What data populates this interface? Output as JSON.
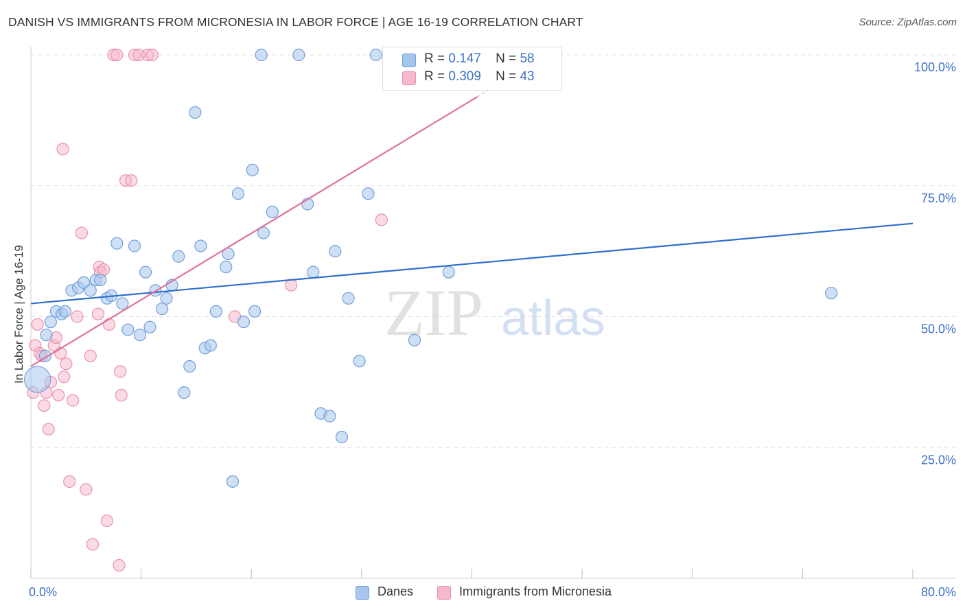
{
  "title": "DANISH VS IMMIGRANTS FROM MICRONESIA IN LABOR FORCE | AGE 16-19 CORRELATION CHART",
  "source": "Source: ZipAtlas.com",
  "watermark": {
    "zip": "ZIP",
    "atlas": "atlas"
  },
  "legend": {
    "danes": {
      "r_label": "R =",
      "r_value": "0.147",
      "n_label": "N =",
      "n_value": "58"
    },
    "micronesia": {
      "r_label": "R =",
      "r_value": "0.309",
      "n_label": "N =",
      "n_value": "43"
    }
  },
  "colors": {
    "danes_fill": "#a8c6ec",
    "danes_stroke": "#6f9fdc",
    "danes_line": "#2f6fce",
    "micro_fill": "#f6b8cb",
    "micro_stroke": "#ea8fae",
    "micro_line": "#e07098",
    "axis_text": "#3a6fc8",
    "grid": "#e2e2e2"
  },
  "chart_data": {
    "type": "scatter",
    "title": "DANISH VS IMMIGRANTS FROM MICRONESIA IN LABOR FORCE | AGE 16-19 CORRELATION CHART",
    "xlabel": "",
    "ylabel": "In Labor Force | Age 16-19",
    "xlim": [
      0,
      80
    ],
    "ylim": [
      0,
      100
    ],
    "x_tick_labels": [
      {
        "value": 0,
        "label": "0.0%"
      },
      {
        "value": 80,
        "label": "80.0%"
      }
    ],
    "y_tick_labels": [
      {
        "value": 25,
        "label": "25.0%"
      },
      {
        "value": 50,
        "label": "50.0%"
      },
      {
        "value": 75,
        "label": "75.0%"
      },
      {
        "value": 100,
        "label": "100.0%"
      }
    ],
    "legend_position": "top-center",
    "series": [
      {
        "name": "Danes",
        "r": 0.147,
        "n": 58,
        "trend": {
          "x": [
            0,
            80
          ],
          "y": [
            52.5,
            67.8
          ]
        },
        "points": [
          {
            "x": 0.6,
            "y": 38,
            "big": true
          },
          {
            "x": 1.3,
            "y": 42.5
          },
          {
            "x": 1.4,
            "y": 46.5
          },
          {
            "x": 1.8,
            "y": 49
          },
          {
            "x": 2.3,
            "y": 51
          },
          {
            "x": 2.8,
            "y": 50.5
          },
          {
            "x": 3.1,
            "y": 51
          },
          {
            "x": 3.7,
            "y": 55
          },
          {
            "x": 4.3,
            "y": 55.5
          },
          {
            "x": 4.8,
            "y": 56.5
          },
          {
            "x": 5.4,
            "y": 55
          },
          {
            "x": 5.9,
            "y": 57
          },
          {
            "x": 6.3,
            "y": 57
          },
          {
            "x": 6.9,
            "y": 53.5
          },
          {
            "x": 7.3,
            "y": 54
          },
          {
            "x": 7.8,
            "y": 64
          },
          {
            "x": 8.3,
            "y": 52.5
          },
          {
            "x": 8.8,
            "y": 47.5
          },
          {
            "x": 9.4,
            "y": 63.5
          },
          {
            "x": 9.9,
            "y": 46.5
          },
          {
            "x": 10.4,
            "y": 58.5
          },
          {
            "x": 10.8,
            "y": 48
          },
          {
            "x": 11.3,
            "y": 55
          },
          {
            "x": 11.9,
            "y": 51.5
          },
          {
            "x": 12.3,
            "y": 53.5
          },
          {
            "x": 12.8,
            "y": 56
          },
          {
            "x": 13.4,
            "y": 61.5
          },
          {
            "x": 13.9,
            "y": 35.5
          },
          {
            "x": 14.4,
            "y": 40.5
          },
          {
            "x": 14.9,
            "y": 89
          },
          {
            "x": 15.4,
            "y": 63.5
          },
          {
            "x": 15.8,
            "y": 44
          },
          {
            "x": 16.3,
            "y": 44.5
          },
          {
            "x": 16.8,
            "y": 51
          },
          {
            "x": 17.7,
            "y": 59.5
          },
          {
            "x": 17.9,
            "y": 62
          },
          {
            "x": 18.3,
            "y": 18.5
          },
          {
            "x": 18.8,
            "y": 73.5
          },
          {
            "x": 19.3,
            "y": 49
          },
          {
            "x": 20.1,
            "y": 78
          },
          {
            "x": 20.3,
            "y": 51
          },
          {
            "x": 20.9,
            "y": 100
          },
          {
            "x": 21.1,
            "y": 66
          },
          {
            "x": 21.9,
            "y": 70
          },
          {
            "x": 24.3,
            "y": 100
          },
          {
            "x": 25.1,
            "y": 71.5
          },
          {
            "x": 25.6,
            "y": 58.5
          },
          {
            "x": 26.3,
            "y": 31.5
          },
          {
            "x": 27.1,
            "y": 31
          },
          {
            "x": 27.6,
            "y": 62.5
          },
          {
            "x": 28.2,
            "y": 27
          },
          {
            "x": 28.8,
            "y": 53.5
          },
          {
            "x": 29.8,
            "y": 41.5
          },
          {
            "x": 30.6,
            "y": 73.5
          },
          {
            "x": 31.3,
            "y": 100
          },
          {
            "x": 34.8,
            "y": 45.5
          },
          {
            "x": 37.9,
            "y": 58.5
          },
          {
            "x": 72.6,
            "y": 54.5
          }
        ]
      },
      {
        "name": "Immigrants from Micronesia",
        "r": 0.309,
        "n": 43,
        "trend": {
          "x": [
            0,
            40.5
          ],
          "y": [
            40.5,
            92
          ]
        },
        "trend_extension": {
          "x": [
            40.5,
            45
          ],
          "y": [
            92,
            98
          ]
        },
        "points": [
          {
            "x": 0.2,
            "y": 35.5
          },
          {
            "x": 0.4,
            "y": 44.5
          },
          {
            "x": 0.6,
            "y": 48.5
          },
          {
            "x": 0.8,
            "y": 43
          },
          {
            "x": 1.0,
            "y": 42.5
          },
          {
            "x": 1.2,
            "y": 33
          },
          {
            "x": 1.4,
            "y": 35.5
          },
          {
            "x": 1.6,
            "y": 28.5
          },
          {
            "x": 1.8,
            "y": 37.5
          },
          {
            "x": 2.1,
            "y": 44.5
          },
          {
            "x": 2.3,
            "y": 46
          },
          {
            "x": 2.5,
            "y": 35
          },
          {
            "x": 2.7,
            "y": 43
          },
          {
            "x": 2.9,
            "y": 82
          },
          {
            "x": 3.0,
            "y": 38.5
          },
          {
            "x": 3.2,
            "y": 41
          },
          {
            "x": 3.5,
            "y": 18.5
          },
          {
            "x": 3.8,
            "y": 34
          },
          {
            "x": 4.2,
            "y": 50
          },
          {
            "x": 4.6,
            "y": 66
          },
          {
            "x": 5.0,
            "y": 17
          },
          {
            "x": 5.4,
            "y": 42.5
          },
          {
            "x": 5.6,
            "y": 6.5
          },
          {
            "x": 6.1,
            "y": 50.5
          },
          {
            "x": 6.2,
            "y": 59.5
          },
          {
            "x": 6.3,
            "y": 58.5
          },
          {
            "x": 6.6,
            "y": 59
          },
          {
            "x": 6.9,
            "y": 11
          },
          {
            "x": 7.1,
            "y": 48.5
          },
          {
            "x": 7.5,
            "y": 100
          },
          {
            "x": 7.8,
            "y": 100
          },
          {
            "x": 8.0,
            "y": 2.5
          },
          {
            "x": 8.1,
            "y": 39.5
          },
          {
            "x": 8.2,
            "y": 35
          },
          {
            "x": 8.6,
            "y": 76
          },
          {
            "x": 9.1,
            "y": 76
          },
          {
            "x": 9.4,
            "y": 100
          },
          {
            "x": 9.8,
            "y": 100
          },
          {
            "x": 10.6,
            "y": 100
          },
          {
            "x": 11.0,
            "y": 100
          },
          {
            "x": 18.5,
            "y": 50
          },
          {
            "x": 23.6,
            "y": 56
          },
          {
            "x": 31.8,
            "y": 68.5
          }
        ]
      }
    ]
  },
  "bottom_legend": {
    "danes": "Danes",
    "micronesia": "Immigrants from Micronesia"
  }
}
